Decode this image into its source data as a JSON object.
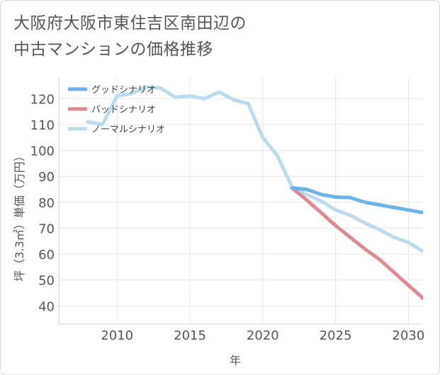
{
  "title": {
    "line1": "大阪府大阪市東住吉区南田辺の",
    "line2": "中古マンションの価格推移"
  },
  "chart_data": {
    "type": "line",
    "xlabel": "年",
    "ylabel": "坪（3.3㎡）単価（万円）",
    "xlim": [
      2006,
      2031
    ],
    "ylim": [
      33,
      128
    ],
    "x_ticks": [
      2010,
      2015,
      2020,
      2025,
      2030
    ],
    "y_ticks": [
      40,
      50,
      60,
      70,
      80,
      90,
      100,
      110,
      120
    ],
    "grid": true,
    "legend_position": "top-left",
    "series": [
      {
        "name": "グッドシナリオ",
        "color": "#6cb4e8",
        "x": [
          2022,
          2023,
          2024,
          2025,
          2026,
          2027,
          2028,
          2029,
          2030,
          2031
        ],
        "y": [
          85.5,
          85,
          83,
          82,
          81.8,
          80,
          79,
          78,
          77,
          76
        ]
      },
      {
        "name": "バッドシナリオ",
        "color": "#de8a92",
        "x": [
          2022,
          2023,
          2024,
          2025,
          2026,
          2027,
          2028,
          2029,
          2030,
          2031
        ],
        "y": [
          85.5,
          81,
          76,
          71,
          66.5,
          62,
          58,
          53,
          48,
          43
        ]
      },
      {
        "name": "ノーマルシナリオ",
        "color": "#bcdcee",
        "x": [
          2008,
          2009,
          2010,
          2011,
          2012,
          2013,
          2014,
          2015,
          2016,
          2017,
          2018,
          2019,
          2020,
          2021,
          2022,
          2023,
          2024,
          2025,
          2026,
          2027,
          2028,
          2029,
          2030,
          2031
        ],
        "y": [
          111,
          110,
          121,
          122,
          124.5,
          124,
          120.5,
          121,
          120,
          122.5,
          119.5,
          118,
          105,
          98,
          86,
          83,
          80.5,
          77,
          75,
          72,
          69.5,
          66.5,
          64.5,
          61
        ]
      }
    ]
  }
}
